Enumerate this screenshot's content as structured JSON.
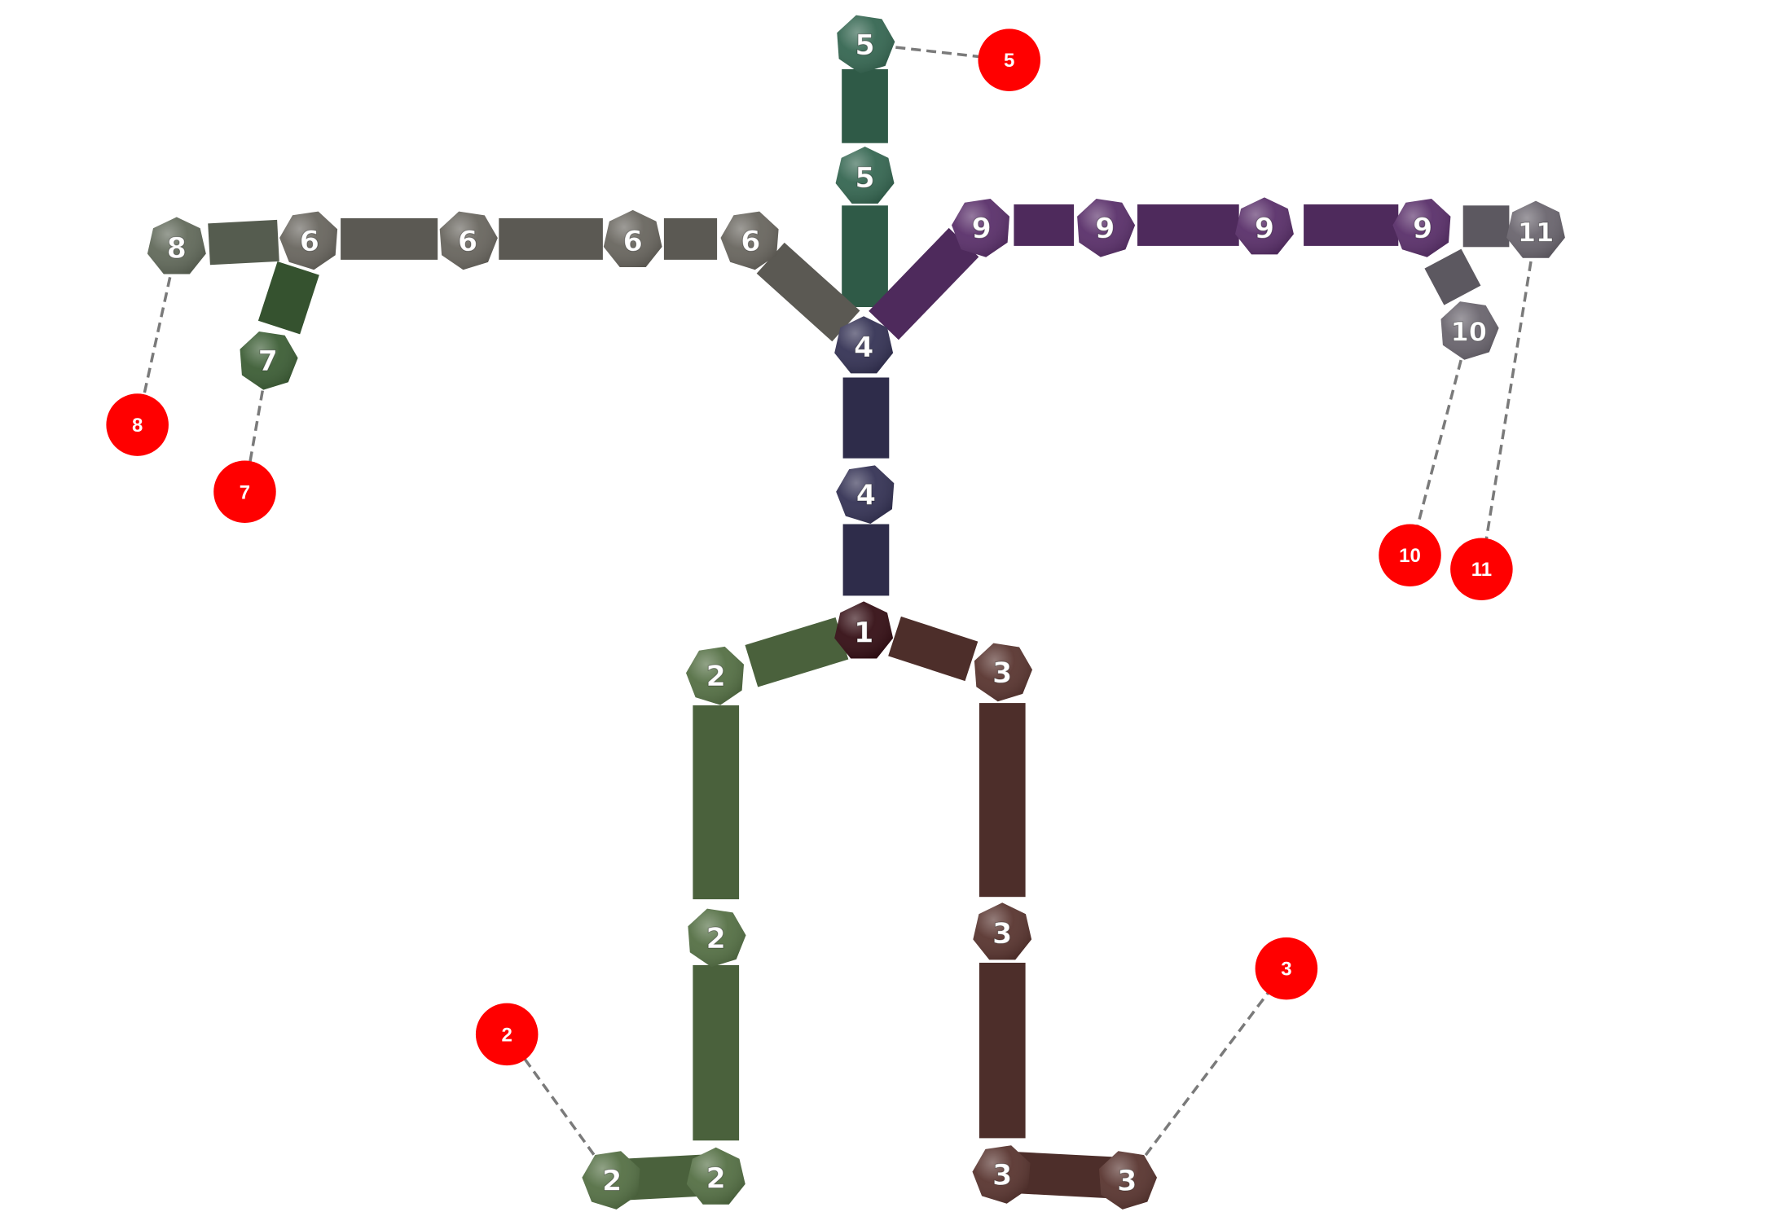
{
  "colors": {
    "c1": "#2e0d12",
    "c2": "#4a613c",
    "c3": "#4d2e2a",
    "c4": "#2e2c4a",
    "c5": "#2f5a47",
    "c6": "#5b5953",
    "c7": "#35522f",
    "c8": "#555c4f",
    "c9": "#4e2a5c",
    "c10": "#5c5860",
    "c11": "#5c5860",
    "target": "#ff0000",
    "leader": "#7a7a7a"
  },
  "joints": [
    {
      "id": "j-1",
      "label": "1",
      "group": "c1"
    },
    {
      "id": "j-2a",
      "label": "2",
      "group": "c2"
    },
    {
      "id": "j-2b",
      "label": "2",
      "group": "c2"
    },
    {
      "id": "j-2c",
      "label": "2",
      "group": "c2"
    },
    {
      "id": "j-2d",
      "label": "2",
      "group": "c2"
    },
    {
      "id": "j-3a",
      "label": "3",
      "group": "c3"
    },
    {
      "id": "j-3b",
      "label": "3",
      "group": "c3"
    },
    {
      "id": "j-3c",
      "label": "3",
      "group": "c3"
    },
    {
      "id": "j-3d",
      "label": "3",
      "group": "c3"
    },
    {
      "id": "j-4a",
      "label": "4",
      "group": "c4"
    },
    {
      "id": "j-4b",
      "label": "4",
      "group": "c4"
    },
    {
      "id": "j-5a",
      "label": "5",
      "group": "c5"
    },
    {
      "id": "j-5b",
      "label": "5",
      "group": "c5"
    },
    {
      "id": "j-6a",
      "label": "6",
      "group": "c6"
    },
    {
      "id": "j-6b",
      "label": "6",
      "group": "c6"
    },
    {
      "id": "j-6c",
      "label": "6",
      "group": "c6"
    },
    {
      "id": "j-6d",
      "label": "6",
      "group": "c6"
    },
    {
      "id": "j-7",
      "label": "7",
      "group": "c7"
    },
    {
      "id": "j-8",
      "label": "8",
      "group": "c8"
    },
    {
      "id": "j-9a",
      "label": "9",
      "group": "c9"
    },
    {
      "id": "j-9b",
      "label": "9",
      "group": "c9"
    },
    {
      "id": "j-9c",
      "label": "9",
      "group": "c9"
    },
    {
      "id": "j-9d",
      "label": "9",
      "group": "c9"
    },
    {
      "id": "j-10",
      "label": "10",
      "group": "c10"
    },
    {
      "id": "j-11",
      "label": "11",
      "group": "c11"
    }
  ],
  "targets": [
    {
      "id": "t-2",
      "label": "2"
    },
    {
      "id": "t-3",
      "label": "3"
    },
    {
      "id": "t-5",
      "label": "5"
    },
    {
      "id": "t-7",
      "label": "7"
    },
    {
      "id": "t-8",
      "label": "8"
    },
    {
      "id": "t-10",
      "label": "10"
    },
    {
      "id": "t-11",
      "label": "11"
    }
  ]
}
